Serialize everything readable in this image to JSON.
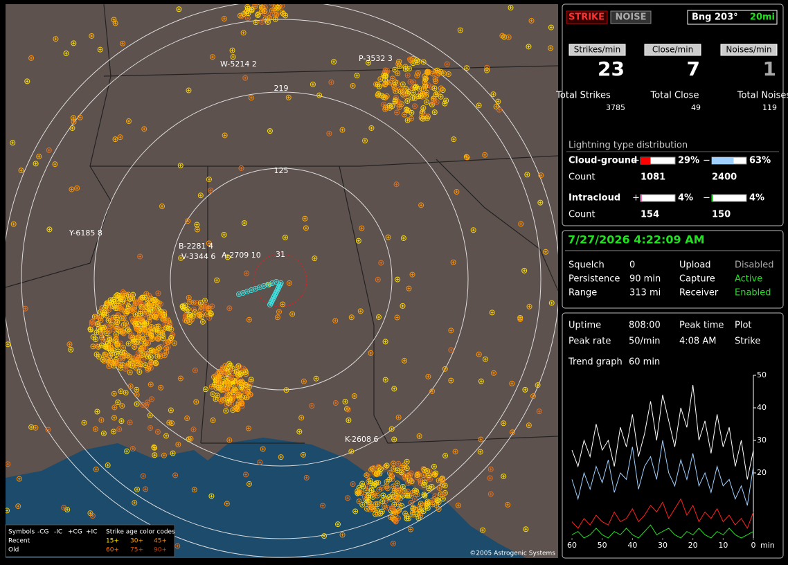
{
  "map": {
    "range_labels": [
      "219",
      "125",
      "31"
    ],
    "station_labels": [
      "W-5214 2",
      "P-3532 3",
      "Y-6185 8",
      "B-2281 4",
      "V-3344 6",
      "A-2709 10",
      "K-2608 6"
    ],
    "legend": {
      "symbols": "Symbols",
      "cols": [
        "-CG",
        "-IC",
        "+CG",
        "+IC"
      ],
      "age_title": "Strike age color codes",
      "recent": "Recent",
      "old": "Old",
      "ages_recent": [
        "15+",
        "30+",
        "45+"
      ],
      "ages_old": [
        "60+",
        "75+",
        "90+"
      ]
    },
    "copyright": "©2005 Astrogenic Systems"
  },
  "status": {
    "strike": "STRIKE",
    "noise": "NOISE",
    "bearing": "Bng 203°",
    "distance": "20mi",
    "rates": [
      {
        "label": "Strikes/min",
        "value": "23",
        "total_label": "Total Strikes",
        "total": "3785"
      },
      {
        "label": "Close/min",
        "value": "7",
        "total_label": "Total Close",
        "total": "49"
      },
      {
        "label": "Noises/min",
        "value": "1",
        "total_label": "Total Noises",
        "total": "119"
      }
    ],
    "distribution": {
      "title": "Lightning type distribution",
      "count_label": "Count",
      "rows": [
        {
          "name": "Cloud-ground",
          "plus_sign": "+",
          "minus_sign": "−",
          "plus": {
            "percent": 29,
            "label": "29%"
          },
          "minus": {
            "percent": 63,
            "label": "63%"
          },
          "plus_count": "1081",
          "minus_count": "2400"
        },
        {
          "name": "Intracloud",
          "plus_sign": "+",
          "minus_sign": "−",
          "plus": {
            "percent": 4,
            "label": "4%"
          },
          "minus": {
            "percent": 4,
            "label": "4%"
          },
          "plus_count": "154",
          "minus_count": "150"
        }
      ]
    }
  },
  "settings": {
    "datetime": "7/27/2026 4:22:09 AM",
    "rows": [
      [
        "Squelch",
        "0",
        "Upload",
        "Disabled"
      ],
      [
        "Persistence",
        "90 min",
        "Capture",
        "Active"
      ],
      [
        "Range",
        "313 mi",
        "Receiver",
        "Enabled"
      ]
    ]
  },
  "stats": {
    "rows": [
      [
        "Uptime",
        "808:00",
        "Peak time",
        "Plot"
      ],
      [
        "Peak rate",
        "50/min",
        "4:08 AM",
        "Strike"
      ]
    ],
    "trend_label": "Trend graph",
    "trend_value": "60 min"
  },
  "trend": {
    "xlim": [
      60,
      0
    ],
    "ylim": [
      0,
      50
    ],
    "xticks": [
      60,
      50,
      40,
      30,
      20,
      10,
      0
    ],
    "x_unit": "min",
    "yticks": [
      20,
      30,
      40,
      50
    ],
    "x": [
      60,
      58,
      56,
      54,
      52,
      50,
      48,
      46,
      44,
      42,
      40,
      38,
      36,
      34,
      32,
      30,
      28,
      26,
      24,
      22,
      20,
      18,
      16,
      14,
      12,
      10,
      8,
      6,
      4,
      2,
      0
    ],
    "series": [
      {
        "color": "#ffffff",
        "values": [
          27,
          22,
          30,
          25,
          35,
          27,
          30,
          22,
          34,
          28,
          38,
          25,
          32,
          42,
          30,
          44,
          36,
          28,
          40,
          34,
          47,
          30,
          36,
          26,
          38,
          28,
          34,
          22,
          30,
          18,
          27
        ]
      },
      {
        "color": "#a0d0ff",
        "values": [
          18,
          12,
          20,
          15,
          22,
          17,
          24,
          14,
          20,
          18,
          28,
          15,
          22,
          25,
          18,
          30,
          20,
          16,
          24,
          18,
          26,
          16,
          20,
          14,
          22,
          16,
          18,
          12,
          16,
          10,
          22
        ]
      },
      {
        "color": "#ff2020",
        "values": [
          5,
          3,
          6,
          4,
          7,
          5,
          4,
          8,
          5,
          6,
          9,
          5,
          7,
          10,
          8,
          11,
          6,
          9,
          12,
          7,
          10,
          5,
          8,
          6,
          9,
          5,
          7,
          4,
          6,
          3,
          8
        ]
      },
      {
        "color": "#20e020",
        "values": [
          1,
          2,
          0,
          1,
          3,
          1,
          0,
          2,
          1,
          3,
          1,
          0,
          2,
          4,
          1,
          2,
          3,
          1,
          0,
          2,
          1,
          3,
          1,
          0,
          2,
          1,
          3,
          1,
          0,
          1,
          2
        ]
      }
    ]
  }
}
